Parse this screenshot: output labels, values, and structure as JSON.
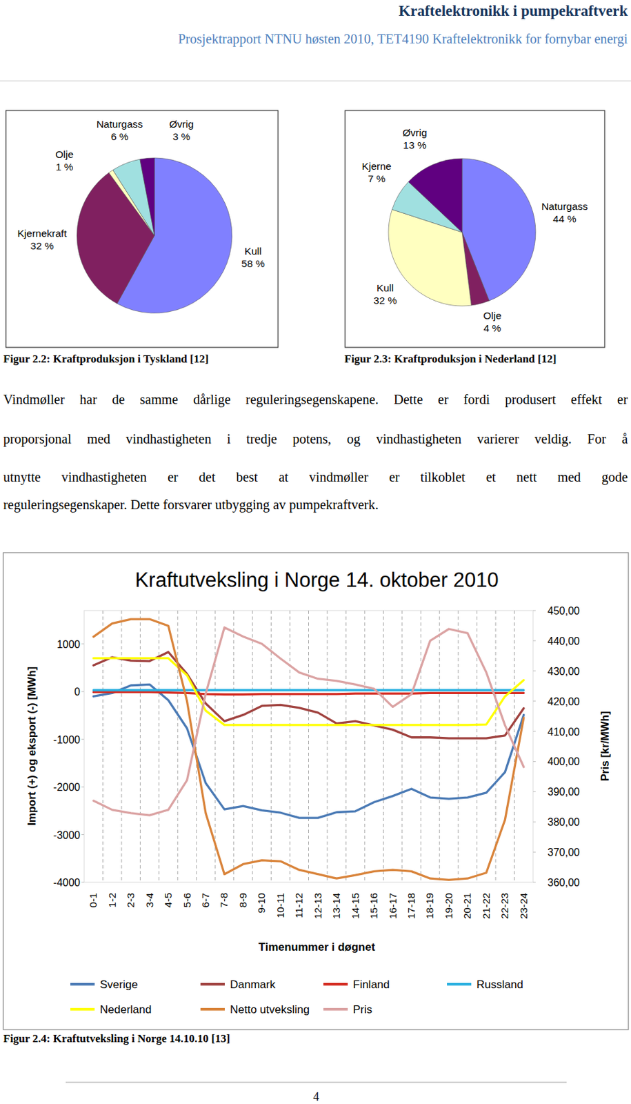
{
  "header": {
    "title": "Kraftelektronikk i pumpekraftverk",
    "subtitle": "Prosjektrapport NTNU høsten 2010, TET4190 Kraftelektronikk for fornybar energi"
  },
  "chart_data": [
    {
      "type": "pie",
      "categories": [
        "Kull",
        "Kjernekraft",
        "Olje",
        "Naturgass",
        "Øvrig"
      ],
      "values": [
        58,
        32,
        1,
        6,
        3
      ],
      "value_labels": [
        "58 %",
        "32 %",
        "1 %",
        "6 %",
        "3 %"
      ],
      "colors": [
        "#8080ff",
        "#802060",
        "#ffffc0",
        "#a0e0e0",
        "#600080"
      ],
      "data_labels": true
    },
    {
      "type": "pie",
      "categories": [
        "Naturgass",
        "Olje",
        "Kull",
        "Kjerne",
        "Øvrig"
      ],
      "values": [
        44,
        4,
        32,
        7,
        13
      ],
      "value_labels": [
        "44 %",
        "4 %",
        "32 %",
        "7 %",
        "13 %"
      ],
      "colors": [
        "#8080ff",
        "#802060",
        "#ffffc0",
        "#a0e0e0",
        "#600080"
      ],
      "data_labels": true
    },
    {
      "type": "line",
      "title": "Kraftutveksling i Norge 14. oktober 2010",
      "x_label": "Timenummer i døgnet",
      "y_label": "Import (+) og eksport (-) [MWh]",
      "y2_label": "Pris [kr/MWh]",
      "categories": [
        "0-1",
        "1-2",
        "2-3",
        "3-4",
        "4-5",
        "5-6",
        "6-7",
        "7-8",
        "8-9",
        "9-10",
        "10-11",
        "11-12",
        "12-13",
        "13-14",
        "14-15",
        "15-16",
        "16-17",
        "17-18",
        "18-19",
        "19-20",
        "20-21",
        "21-22",
        "22-23",
        "23-24"
      ],
      "series": [
        {
          "name": "Sverige",
          "color": "#4a7ab5",
          "values": [
            -100,
            -30,
            130,
            150,
            -180,
            -770,
            -1920,
            -2470,
            -2400,
            -2490,
            -2540,
            -2650,
            -2650,
            -2530,
            -2510,
            -2320,
            -2190,
            -2040,
            -2220,
            -2250,
            -2220,
            -2120,
            -1690,
            -490
          ]
        },
        {
          "name": "Danmark",
          "color": "#a0423f",
          "values": [
            550,
            720,
            650,
            640,
            830,
            370,
            -250,
            -620,
            -490,
            -300,
            -280,
            -340,
            -440,
            -670,
            -620,
            -710,
            -800,
            -960,
            -960,
            -980,
            -980,
            -980,
            -920,
            -350
          ]
        },
        {
          "name": "Finland",
          "color": "#d42a20",
          "values": [
            -10,
            -10,
            -10,
            -10,
            -20,
            -30,
            -50,
            -60,
            -60,
            -50,
            -50,
            -50,
            -50,
            -50,
            -40,
            -40,
            -40,
            -40,
            -30,
            -30,
            -30,
            -30,
            -30,
            -30
          ]
        },
        {
          "name": "Russland",
          "color": "#29b0e0",
          "values": [
            30,
            30,
            30,
            30,
            30,
            30,
            30,
            30,
            30,
            30,
            30,
            30,
            30,
            30,
            30,
            30,
            30,
            30,
            30,
            30,
            30,
            30,
            30,
            30
          ]
        },
        {
          "name": "Nederland",
          "color": "#ffff00",
          "values": [
            700,
            700,
            700,
            700,
            700,
            340,
            -400,
            -700,
            -700,
            -700,
            -700,
            -700,
            -700,
            -700,
            -700,
            -700,
            -700,
            -700,
            -700,
            -700,
            -700,
            -690,
            -100,
            240
          ]
        },
        {
          "name": "Netto utveksling",
          "color": "#d9843b",
          "values": [
            1150,
            1430,
            1520,
            1520,
            1380,
            -200,
            -2550,
            -3830,
            -3620,
            -3540,
            -3560,
            -3740,
            -3830,
            -3920,
            -3850,
            -3770,
            -3740,
            -3770,
            -3920,
            -3950,
            -3920,
            -3800,
            -2690,
            -550
          ]
        },
        {
          "name": "Pris",
          "color": "#dba3a3",
          "axis": "y2",
          "values": [
            387,
            384,
            382.9,
            382.2,
            384,
            393.8,
            422.5,
            444.4,
            441.4,
            439,
            434.1,
            429.5,
            427.4,
            426.7,
            425.5,
            424.1,
            418.1,
            422.3,
            440,
            443.9,
            442.5,
            429.5,
            412,
            398.2
          ]
        }
      ],
      "ylim": [
        -4000,
        1700
      ],
      "yticks": [
        -4000,
        -3000,
        -2000,
        -1000,
        0,
        1000
      ],
      "y2lim": [
        360,
        450
      ],
      "y2ticks": [
        {
          "value": 360,
          "label": "360,00"
        },
        {
          "value": 370,
          "label": "370,00"
        },
        {
          "value": 380,
          "label": "380,00"
        },
        {
          "value": 390,
          "label": "390,00"
        },
        {
          "value": 400,
          "label": "400,00"
        },
        {
          "value": 410,
          "label": "410,00"
        },
        {
          "value": 420,
          "label": "420,00"
        },
        {
          "value": 430,
          "label": "430,00"
        },
        {
          "value": 440,
          "label": "440,00"
        },
        {
          "value": 450,
          "label": "450,00"
        }
      ],
      "grid": true,
      "legend": "bottom"
    }
  ],
  "captions": [
    "Figur 2.2: Kraftproduksjon i Tyskland [12]",
    "Figur 2.3: Kraftproduksjon i Nederland [12]",
    "Figur 2.4: Kraftutveksling i Norge 14.10.10 [13]"
  ],
  "body_lines": [
    "Vindmøller har de samme dårlige reguleringsegenskapene. Dette er fordi produsert effekt er",
    "proporsjonal med vindhastigheten i tredje potens, og vindhastigheten varierer veldig. For å",
    "utnytte vindhastigheten er det best at vindmøller er tilkoblet et nett med gode",
    "reguleringsegenskaper. Dette forsvarer utbygging av pumpekraftverk."
  ],
  "page_number": "4"
}
